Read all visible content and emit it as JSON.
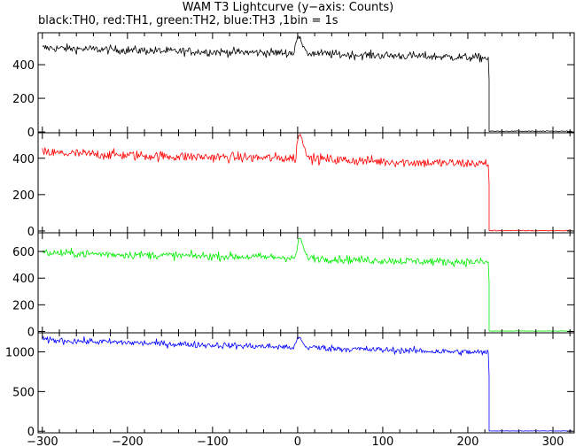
{
  "chart_data": {
    "type": "line",
    "title": "WAM T3 Lightcurve (y−axis: Counts)",
    "subtitle": "black:TH0, red:TH1, green:TH2, blue:TH3 ,1bin = 1s",
    "xlim": [
      -305,
      325
    ],
    "xticks": [
      -300,
      -200,
      -100,
      0,
      100,
      200,
      300
    ],
    "xtick_labels": [
      "−300",
      "−200",
      "−100",
      "0",
      "100",
      "200",
      "300"
    ],
    "bin_seconds": 1,
    "panels": [
      {
        "series": "TH0",
        "color": "#000000",
        "ylim": [
          -5,
          590
        ],
        "yticks": [
          0,
          200,
          400
        ],
        "ytick_labels": [
          "0",
          "200",
          "400"
        ],
        "profile": [
          [
            -300,
            500
          ],
          [
            -150,
            480
          ],
          [
            -10,
            470
          ],
          [
            10,
            470
          ],
          [
            50,
            460
          ],
          [
            150,
            450
          ],
          [
            224,
            440
          ]
        ],
        "spikes": [
          [
            -3,
            520
          ],
          [
            0,
            560
          ],
          [
            3,
            560
          ],
          [
            6,
            510
          ],
          [
            10,
            470
          ]
        ],
        "post_level": 4,
        "noise": 18
      },
      {
        "series": "TH1",
        "color": "#ff0000",
        "ylim": [
          -10,
          540
        ],
        "yticks": [
          0,
          200,
          400
        ],
        "ytick_labels": [
          "0",
          "200",
          "400"
        ],
        "profile": [
          [
            -300,
            430
          ],
          [
            -150,
            410
          ],
          [
            -10,
            400
          ],
          [
            10,
            400
          ],
          [
            50,
            390
          ],
          [
            150,
            375
          ],
          [
            224,
            370
          ]
        ],
        "spikes": [
          [
            -1,
            470
          ],
          [
            1,
            520
          ],
          [
            3,
            525
          ],
          [
            5,
            510
          ],
          [
            7,
            470
          ],
          [
            10,
            420
          ],
          [
            14,
            400
          ]
        ],
        "post_level": 2,
        "noise": 20
      },
      {
        "series": "TH2",
        "color": "#00ee00",
        "ylim": [
          -10,
          740
        ],
        "yticks": [
          0,
          200,
          400,
          600
        ],
        "ytick_labels": [
          "0",
          "200",
          "400",
          "600"
        ],
        "profile": [
          [
            -300,
            590
          ],
          [
            -150,
            570
          ],
          [
            -10,
            555
          ],
          [
            10,
            555
          ],
          [
            50,
            540
          ],
          [
            150,
            525
          ],
          [
            224,
            520
          ]
        ],
        "spikes": [
          [
            -1,
            600
          ],
          [
            1,
            690
          ],
          [
            3,
            700
          ],
          [
            5,
            660
          ],
          [
            8,
            600
          ],
          [
            12,
            560
          ]
        ],
        "post_level": 3,
        "noise": 22
      },
      {
        "series": "TH3",
        "color": "#0000ff",
        "ylim": [
          -20,
          1240
        ],
        "yticks": [
          0,
          500,
          1000
        ],
        "ytick_labels": [
          "0",
          "500",
          "1000"
        ],
        "profile": [
          [
            -300,
            1150
          ],
          [
            -150,
            1100
          ],
          [
            -10,
            1060
          ],
          [
            10,
            1060
          ],
          [
            50,
            1040
          ],
          [
            150,
            1010
          ],
          [
            224,
            990
          ]
        ],
        "spikes": [
          [
            -2,
            1110
          ],
          [
            0,
            1180
          ],
          [
            3,
            1170
          ],
          [
            6,
            1110
          ],
          [
            10,
            1060
          ]
        ],
        "post_level": 4,
        "noise": 30
      }
    ],
    "drop_x": 225
  }
}
